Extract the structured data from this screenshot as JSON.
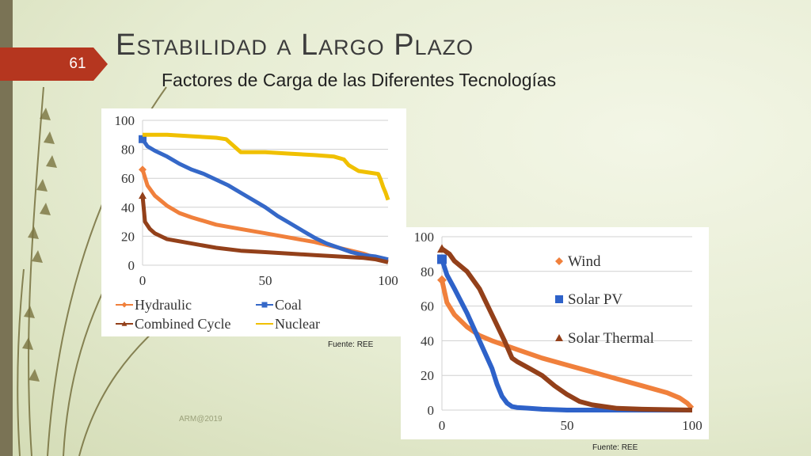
{
  "slide": {
    "number": "61",
    "title": "Estabilidad a Largo Plazo",
    "subtitle": "Factores de Carga de las Diferentes Tecnologías",
    "source_1": "Fuente: REE",
    "source_2": "Fuente: REE",
    "footer": "ARM@2019"
  },
  "colors": {
    "accent_tab": "#b5361f",
    "hydraulic": "#f0803c",
    "coal": "#3568c8",
    "combined_cycle": "#93401a",
    "nuclear": "#f0c000",
    "wind": "#f0803c",
    "solar_pv": "#2e62c9",
    "solar_thermal": "#93401a"
  },
  "chart_data": [
    {
      "type": "line",
      "xlim": [
        0,
        100
      ],
      "ylim": [
        0,
        100
      ],
      "x_ticks": [
        "0",
        "50",
        "100"
      ],
      "y_ticks": [
        "100",
        "80",
        "60",
        "40",
        "20",
        "0"
      ],
      "grid": true,
      "legend_position": "bottom",
      "series": [
        {
          "name": "Hydraulic",
          "color": "#f0803c",
          "marker": "diamond",
          "x": [
            0,
            2,
            5,
            10,
            15,
            20,
            30,
            40,
            50,
            60,
            70,
            80,
            90,
            95,
            100
          ],
          "y": [
            66,
            55,
            48,
            41,
            36,
            33,
            28,
            25,
            22,
            19,
            16,
            12,
            8,
            5,
            3
          ]
        },
        {
          "name": "Coal",
          "color": "#3568c8",
          "marker": "square",
          "x": [
            0,
            2,
            5,
            10,
            15,
            20,
            25,
            30,
            35,
            40,
            45,
            50,
            55,
            60,
            65,
            70,
            75,
            80,
            85,
            90,
            95,
            100
          ],
          "y": [
            87,
            82,
            79,
            75,
            70,
            66,
            63,
            59,
            55,
            50,
            45,
            40,
            34,
            29,
            24,
            19,
            15,
            12,
            9,
            7,
            6,
            4
          ]
        },
        {
          "name": "Combined Cycle",
          "color": "#93401a",
          "marker": "triangle",
          "x": [
            0,
            1,
            3,
            5,
            10,
            20,
            30,
            40,
            50,
            60,
            70,
            80,
            90,
            95,
            100
          ],
          "y": [
            48,
            30,
            25,
            22,
            18,
            15,
            12,
            10,
            9,
            8,
            7,
            6,
            5,
            4,
            2
          ]
        },
        {
          "name": "Nuclear",
          "color": "#f0c000",
          "marker": "none",
          "x": [
            0,
            10,
            20,
            30,
            34,
            36,
            40,
            50,
            60,
            70,
            78,
            82,
            84,
            88,
            92,
            96,
            97,
            98,
            99,
            100
          ],
          "y": [
            90,
            90,
            89,
            88,
            87,
            84,
            78,
            78,
            77,
            76,
            75,
            73,
            69,
            65,
            64,
            63,
            59,
            54,
            50,
            45
          ]
        }
      ]
    },
    {
      "type": "line",
      "xlim": [
        0,
        100
      ],
      "ylim": [
        0,
        100
      ],
      "x_ticks": [
        "0",
        "50",
        "100"
      ],
      "y_ticks": [
        "100",
        "80",
        "60",
        "40",
        "20",
        "0"
      ],
      "grid": true,
      "legend_position": "right",
      "series": [
        {
          "name": "Wind",
          "color": "#f0803c",
          "marker": "diamond",
          "x": [
            0,
            2,
            5,
            10,
            15,
            20,
            30,
            40,
            50,
            60,
            70,
            80,
            90,
            95,
            98,
            100
          ],
          "y": [
            75,
            62,
            55,
            48,
            43,
            40,
            35,
            30,
            26,
            22,
            18,
            14,
            10,
            7,
            4,
            1
          ]
        },
        {
          "name": "Solar PV",
          "color": "#2e62c9",
          "marker": "square",
          "x": [
            0,
            2,
            5,
            10,
            15,
            20,
            22,
            24,
            26,
            28,
            30,
            35,
            40,
            50,
            100
          ],
          "y": [
            87,
            78,
            70,
            56,
            40,
            24,
            15,
            8,
            4,
            2,
            1.5,
            1,
            0.5,
            0,
            0
          ]
        },
        {
          "name": "Solar Thermal",
          "color": "#93401a",
          "marker": "triangle",
          "x": [
            0,
            3,
            5,
            10,
            15,
            20,
            25,
            28,
            30,
            35,
            40,
            45,
            50,
            55,
            60,
            65,
            70,
            80,
            100
          ],
          "y": [
            93,
            90,
            86,
            80,
            70,
            55,
            40,
            30,
            28,
            24,
            20,
            14,
            9,
            5,
            3,
            2,
            1,
            0.5,
            0
          ]
        }
      ]
    }
  ]
}
